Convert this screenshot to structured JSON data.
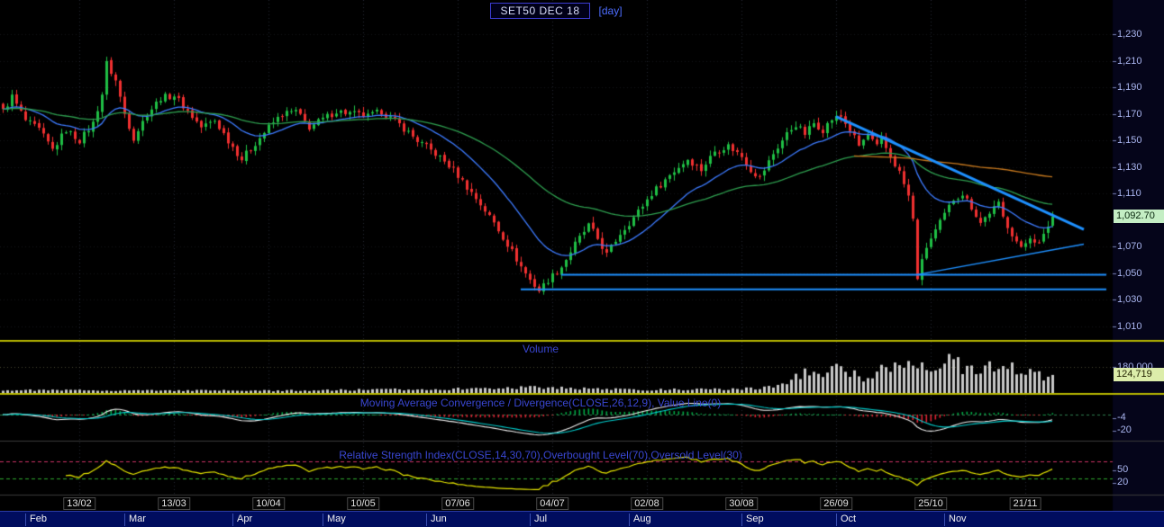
{
  "header": {
    "title": "SET50 DEC 18",
    "interval": "[day]"
  },
  "price_axis": {
    "labels": [
      {
        "text": "1,230",
        "value": 1230
      },
      {
        "text": "1,210",
        "value": 1210
      },
      {
        "text": "1,190",
        "value": 1190
      },
      {
        "text": "1,170",
        "value": 1170
      },
      {
        "text": "1,150",
        "value": 1150
      },
      {
        "text": "1,130",
        "value": 1130
      },
      {
        "text": "1,110",
        "value": 1110
      },
      {
        "text": "1,070",
        "value": 1070
      },
      {
        "text": "1,050",
        "value": 1050
      },
      {
        "text": "1,030",
        "value": 1030
      },
      {
        "text": "1,010",
        "value": 1010
      }
    ],
    "last_price_label": "1,092.70",
    "last_price_value": 1092.7
  },
  "volume_axis": {
    "gridline_label": "180,000",
    "gridline_value": 180000,
    "last_value_label": "124,719",
    "last_value": 124719
  },
  "macd_axis": {
    "labels": [
      {
        "text": "-4",
        "value": -4
      },
      {
        "text": "-20",
        "value": -20
      }
    ]
  },
  "rsi_axis": {
    "labels": [
      {
        "text": "50",
        "value": 50
      },
      {
        "text": "20",
        "value": 20
      }
    ]
  },
  "panels": {
    "volume": {
      "title": "Volume"
    },
    "macd": {
      "title": "Moving Average Convergence / Divergence(CLOSE,26,12,9), Value Line(0)"
    },
    "rsi": {
      "title": "Relative Strength Index(CLOSE,14,30,70),Overbought Level(70),Oversold Level(30)"
    }
  },
  "x_axis": {
    "date_ticks": [
      {
        "label": "13/02",
        "day": 17
      },
      {
        "label": "13/03",
        "day": 38
      },
      {
        "label": "10/04",
        "day": 59
      },
      {
        "label": "10/05",
        "day": 80
      },
      {
        "label": "07/06",
        "day": 101
      },
      {
        "label": "04/07",
        "day": 122
      },
      {
        "label": "02/08",
        "day": 143
      },
      {
        "label": "30/08",
        "day": 164
      },
      {
        "label": "26/09",
        "day": 185
      },
      {
        "label": "25/10",
        "day": 206
      },
      {
        "label": "21/11",
        "day": 227
      }
    ],
    "month_labels": [
      {
        "label": "Feb",
        "day": 5
      },
      {
        "label": "Mar",
        "day": 27
      },
      {
        "label": "Apr",
        "day": 51
      },
      {
        "label": "May",
        "day": 71
      },
      {
        "label": "Jun",
        "day": 94
      },
      {
        "label": "Jul",
        "day": 117
      },
      {
        "label": "Aug",
        "day": 139
      },
      {
        "label": "Sep",
        "day": 164
      },
      {
        "label": "Oct",
        "day": 185
      },
      {
        "label": "Nov",
        "day": 209
      }
    ]
  },
  "colors": {
    "background": "#000000",
    "scale_background": "#05051a",
    "up_candle": "#1fbf45",
    "down_candle": "#f03030",
    "ma_fast": "#3d7bff",
    "ma_slow": "#2e9e4f",
    "ma_long": "#c8791e",
    "trendline": "#1e90ff",
    "volume_bar": "#c8c8c8",
    "macd_line": "#f0f0f0",
    "macd_signal": "#00cccc",
    "hist_up": "#00aa44",
    "hist_down": "#dd2233",
    "rsi_line": "#e6e600",
    "overbought": "#cc3366",
    "oversold": "#2ea82e",
    "separator": "#b8b800",
    "panel_title": "#3946d1",
    "axis_text": "#aab6f0",
    "last_price_bg": "#c4eec4",
    "last_volume_bg": "#dcedaa",
    "month_bar_bg": "#000d5e"
  },
  "chart_data": {
    "type": "candlestick",
    "title": "SET50 DEC 18 [day]",
    "symbol": "SET50 DEC 18",
    "interval": "day",
    "num_candles": 234,
    "price_axis_range": [
      1000,
      1245
    ],
    "panels": [
      "price",
      "volume",
      "macd",
      "rsi"
    ],
    "last_close": 1092.7,
    "last_volume": 124719,
    "close_anchors": [
      [
        0,
        1172
      ],
      [
        2,
        1183
      ],
      [
        5,
        1165
      ],
      [
        8,
        1158
      ],
      [
        11,
        1143
      ],
      [
        14,
        1158
      ],
      [
        17,
        1150
      ],
      [
        20,
        1163
      ],
      [
        22,
        1185
      ],
      [
        23,
        1208
      ],
      [
        25,
        1195
      ],
      [
        27,
        1170
      ],
      [
        29,
        1152
      ],
      [
        32,
        1170
      ],
      [
        35,
        1182
      ],
      [
        38,
        1184
      ],
      [
        41,
        1172
      ],
      [
        44,
        1160
      ],
      [
        47,
        1165
      ],
      [
        50,
        1150
      ],
      [
        53,
        1136
      ],
      [
        56,
        1148
      ],
      [
        59,
        1160
      ],
      [
        62,
        1170
      ],
      [
        65,
        1172
      ],
      [
        68,
        1160
      ],
      [
        71,
        1166
      ],
      [
        74,
        1172
      ],
      [
        78,
        1170
      ],
      [
        81,
        1168
      ],
      [
        84,
        1172
      ],
      [
        88,
        1162
      ],
      [
        92,
        1150
      ],
      [
        96,
        1140
      ],
      [
        100,
        1128
      ],
      [
        103,
        1115
      ],
      [
        106,
        1102
      ],
      [
        109,
        1088
      ],
      [
        112,
        1072
      ],
      [
        115,
        1055
      ],
      [
        117,
        1045
      ],
      [
        119,
        1037
      ],
      [
        121,
        1045
      ],
      [
        124,
        1055
      ],
      [
        127,
        1072
      ],
      [
        130,
        1086
      ],
      [
        132,
        1076
      ],
      [
        134,
        1064
      ],
      [
        137,
        1080
      ],
      [
        140,
        1092
      ],
      [
        144,
        1110
      ],
      [
        148,
        1124
      ],
      [
        152,
        1136
      ],
      [
        155,
        1128
      ],
      [
        158,
        1142
      ],
      [
        161,
        1146
      ],
      [
        164,
        1138
      ],
      [
        166,
        1128
      ],
      [
        168,
        1122
      ],
      [
        171,
        1140
      ],
      [
        174,
        1155
      ],
      [
        176,
        1162
      ],
      [
        178,
        1155
      ],
      [
        180,
        1163
      ],
      [
        182,
        1158
      ],
      [
        184,
        1166
      ],
      [
        186,
        1168
      ],
      [
        188,
        1158
      ],
      [
        190,
        1146
      ],
      [
        192,
        1154
      ],
      [
        194,
        1145
      ],
      [
        195,
        1150
      ],
      [
        197,
        1138
      ],
      [
        199,
        1126
      ],
      [
        201,
        1108
      ],
      [
        202,
        1090
      ],
      [
        203,
        1047
      ],
      [
        205,
        1070
      ],
      [
        207,
        1082
      ],
      [
        209,
        1094
      ],
      [
        211,
        1106
      ],
      [
        213,
        1110
      ],
      [
        215,
        1100
      ],
      [
        217,
        1088
      ],
      [
        219,
        1096
      ],
      [
        221,
        1102
      ],
      [
        222,
        1092
      ],
      [
        224,
        1080
      ],
      [
        226,
        1068
      ],
      [
        228,
        1078
      ],
      [
        230,
        1072
      ],
      [
        231,
        1078
      ],
      [
        232,
        1086
      ],
      [
        233,
        1092.7
      ]
    ],
    "volume_anchors": [
      [
        0,
        20000
      ],
      [
        60,
        16000
      ],
      [
        100,
        28000
      ],
      [
        119,
        40000
      ],
      [
        140,
        22000
      ],
      [
        160,
        26000
      ],
      [
        168,
        32000
      ],
      [
        172,
        55000
      ],
      [
        176,
        105000
      ],
      [
        179,
        150000
      ],
      [
        182,
        120000
      ],
      [
        185,
        160000
      ],
      [
        188,
        135000
      ],
      [
        191,
        95000
      ],
      [
        194,
        150000
      ],
      [
        197,
        180000
      ],
      [
        200,
        160000
      ],
      [
        202,
        260000
      ],
      [
        204,
        200000
      ],
      [
        206,
        160000
      ],
      [
        208,
        210000
      ],
      [
        211,
        240000
      ],
      [
        213,
        170000
      ],
      [
        215,
        200000
      ],
      [
        217,
        150000
      ],
      [
        219,
        180000
      ],
      [
        221,
        130000
      ],
      [
        223,
        160000
      ],
      [
        225,
        180000
      ],
      [
        227,
        140000
      ],
      [
        229,
        170000
      ],
      [
        231,
        120000
      ],
      [
        233,
        124719
      ]
    ],
    "overlays": {
      "moving_averages": [
        {
          "name": "fast",
          "type": "ema",
          "period": 18
        },
        {
          "name": "slow",
          "type": "ema",
          "period": 55
        },
        {
          "name": "long",
          "type": "sma",
          "period": 190
        }
      ],
      "trendlines": [
        {
          "name": "downtrend",
          "x1_day": 185,
          "price1": 1168,
          "x2_day": 240,
          "price2": 1083,
          "width": 3
        },
        {
          "name": "support-upper",
          "x1_day": 124,
          "price1": 1049,
          "x2_day": 245,
          "price2": 1049,
          "width": 2
        },
        {
          "name": "support-lower",
          "x1_day": 115,
          "price1": 1038,
          "x2_day": 245,
          "price2": 1038,
          "width": 2
        },
        {
          "name": "wedge-rising",
          "x1_day": 203,
          "price1": 1049,
          "x2_day": 240,
          "price2": 1072,
          "width": 1.5
        }
      ]
    },
    "indicators": {
      "macd": {
        "fast": 12,
        "slow": 26,
        "signal": 9,
        "value_line": 0
      },
      "rsi": {
        "period": 14,
        "overbought": 70,
        "oversold": 30
      }
    }
  }
}
